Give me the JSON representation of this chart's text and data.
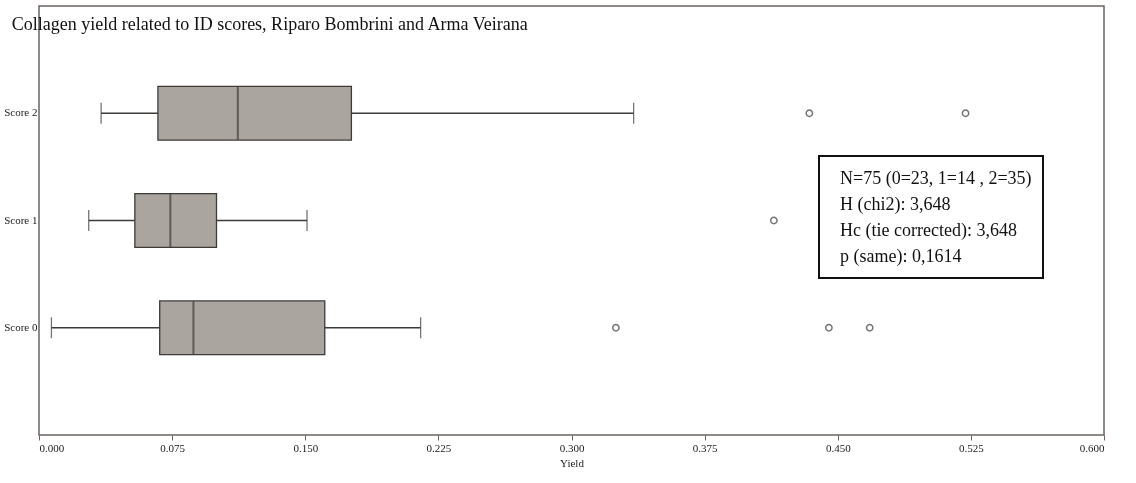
{
  "chart_data": {
    "type": "box",
    "orientation": "horizontal",
    "title": "Collagen yield related to ID scores, Riparo Bombrini and Arma Veirana",
    "xlabel": "Yield",
    "categories": [
      "Score 2",
      "Score 1",
      "Score 0"
    ],
    "series": [
      {
        "color": "#aba5a0",
        "boxes": [
          {
            "low": 0.035,
            "q1": 0.067,
            "median": 0.112,
            "q3": 0.176,
            "high": 0.335,
            "outliers": [
              0.434,
              0.522
            ]
          },
          {
            "low": 0.028,
            "q1": 0.054,
            "median": 0.074,
            "q3": 0.1,
            "high": 0.151,
            "outliers": [
              0.414
            ]
          },
          {
            "low": 0.007,
            "q1": 0.068,
            "median": 0.087,
            "q3": 0.161,
            "high": 0.215,
            "outliers": [
              0.325,
              0.445,
              0.468
            ]
          }
        ]
      }
    ],
    "xlim": [
      0,
      0.6
    ],
    "xticks": [
      {
        "value": 0,
        "label": "0.000"
      },
      {
        "value": 0.075,
        "label": "0.075"
      },
      {
        "value": 0.15,
        "label": "0.150"
      },
      {
        "value": 0.225,
        "label": "0.225"
      },
      {
        "value": 0.3,
        "label": "0.300"
      },
      {
        "value": 0.375,
        "label": "0.375"
      },
      {
        "value": 0.45,
        "label": "0.450"
      },
      {
        "value": 0.525,
        "label": "0.525"
      },
      {
        "value": 0.6,
        "label": "0.600"
      }
    ],
    "grid": false,
    "annotations": [
      "N=75 (0=23, 1=14 , 2=35)",
      "H (chi2): 3,648",
      "Hc (tie corrected): 3,648",
      "p (same): 0,1614"
    ]
  }
}
